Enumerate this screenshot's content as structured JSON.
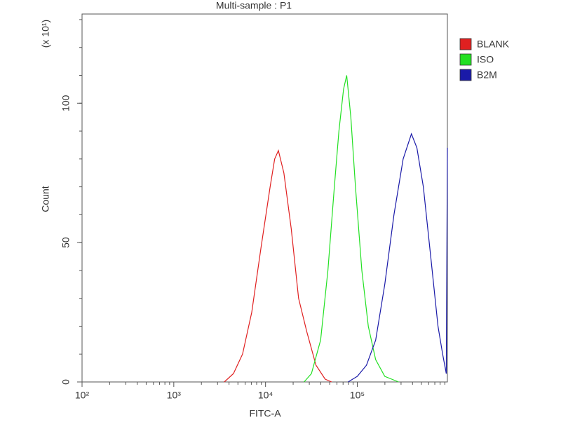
{
  "chart_data": {
    "type": "line",
    "title": "Multi-sample : P1",
    "x_label": "FITC-A",
    "y_label": "Count",
    "y_multiplier": "(x 10¹)",
    "log_x": true,
    "xlim": [
      100,
      960000
    ],
    "ylim": [
      0,
      132
    ],
    "xticks": [
      {
        "value": 100,
        "label": "10²"
      },
      {
        "value": 1000,
        "label": "10³"
      },
      {
        "value": 10000,
        "label": "10⁴"
      },
      {
        "value": 100000,
        "label": "10⁵"
      }
    ],
    "yticks": [
      0,
      50,
      100
    ],
    "legend": "top-right",
    "series": [
      {
        "name": "BLANK",
        "color": "#e02020",
        "x": [
          3548,
          4467,
          5623,
          7079,
          8913,
          11220,
          12589,
          13804,
          15849,
          19055,
          22909,
          28184,
          35481,
          44668,
          52481
        ],
        "values": [
          0,
          3,
          10,
          25,
          48,
          70,
          80,
          83,
          75,
          55,
          30,
          18,
          6,
          1,
          0
        ]
      },
      {
        "name": "ISO",
        "color": "#22e022",
        "x": [
          26303,
          31623,
          39811,
          47863,
          56234,
          63096,
          70795,
          76736,
          85114,
          95499,
          112202,
          131826,
          158489,
          199526,
          281838
        ],
        "values": [
          0,
          3,
          15,
          40,
          70,
          90,
          105,
          110,
          95,
          70,
          40,
          20,
          8,
          2,
          0
        ]
      },
      {
        "name": "B2M",
        "color": "#1a1aa8",
        "x": [
          79433,
          100000,
          125893,
          158489,
          199526,
          251189,
          316228,
          389045,
          446684,
          524807,
          630957,
          758578,
          851138,
          933254,
          960000
        ],
        "values": [
          0,
          2,
          6,
          15,
          35,
          60,
          80,
          89,
          84,
          70,
          45,
          20,
          10,
          3,
          84
        ]
      }
    ]
  }
}
